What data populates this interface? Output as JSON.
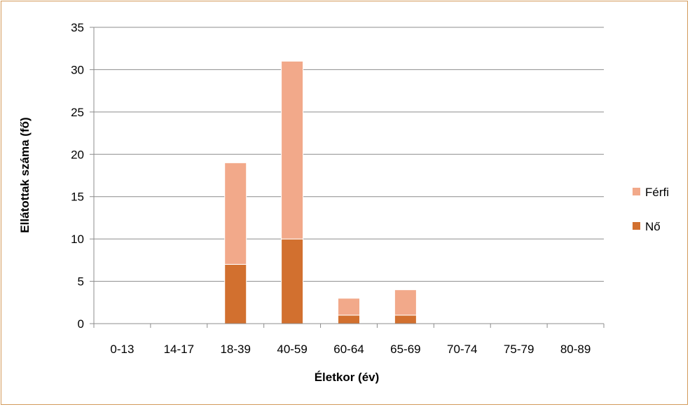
{
  "chart_data": {
    "type": "bar",
    "stacked": true,
    "categories": [
      "0-13",
      "14-17",
      "18-39",
      "40-59",
      "60-64",
      "65-69",
      "70-74",
      "75-79",
      "80-89"
    ],
    "series": [
      {
        "name": "Nő",
        "values": [
          0,
          0,
          7,
          10,
          1,
          1,
          0,
          0,
          0
        ],
        "color": "#d2702f"
      },
      {
        "name": "Férfi",
        "values": [
          0,
          0,
          12,
          21,
          2,
          3,
          0,
          0,
          0
        ],
        "color": "#f2a98a"
      }
    ],
    "xlabel": "Életkor (év)",
    "ylabel": "Ellátottak száma (fő)",
    "ylim": [
      0,
      35
    ],
    "yticks": [
      0,
      5,
      10,
      15,
      20,
      25,
      30,
      35
    ],
    "grid": true,
    "legend_position": "right",
    "legend_order": [
      "Férfi",
      "Nő"
    ],
    "colors": {
      "frame": "#d39a5a",
      "grid": "#8c8c8c"
    }
  }
}
